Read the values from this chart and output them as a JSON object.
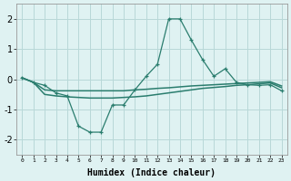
{
  "xlabel": "Humidex (Indice chaleur)",
  "x": [
    0,
    1,
    2,
    3,
    4,
    5,
    6,
    7,
    8,
    9,
    10,
    11,
    12,
    13,
    14,
    15,
    16,
    17,
    18,
    19,
    20,
    21,
    22,
    23
  ],
  "line1": [
    0.05,
    -0.1,
    -0.2,
    -0.45,
    -0.55,
    -1.55,
    -1.75,
    -1.75,
    -0.85,
    -0.85,
    -0.35,
    0.1,
    0.5,
    2.0,
    2.0,
    1.3,
    0.65,
    0.1,
    0.35,
    -0.1,
    -0.18,
    -0.2,
    -0.18,
    -0.38
  ],
  "line2": [
    0.05,
    -0.1,
    -0.35,
    -0.38,
    -0.38,
    -0.38,
    -0.38,
    -0.38,
    -0.38,
    -0.38,
    -0.35,
    -0.33,
    -0.3,
    -0.28,
    -0.25,
    -0.22,
    -0.2,
    -0.18,
    -0.16,
    -0.14,
    -0.12,
    -0.1,
    -0.08,
    -0.22
  ],
  "line3": [
    0.05,
    -0.1,
    -0.5,
    -0.55,
    -0.58,
    -0.6,
    -0.62,
    -0.62,
    -0.62,
    -0.6,
    -0.58,
    -0.55,
    -0.5,
    -0.45,
    -0.4,
    -0.35,
    -0.3,
    -0.27,
    -0.24,
    -0.2,
    -0.18,
    -0.15,
    -0.12,
    -0.28
  ],
  "line_color": "#2a7d6e",
  "bg_color": "#dff2f2",
  "grid_color": "#b8d8d8",
  "ylim": [
    -2.5,
    2.5
  ],
  "yticks": [
    -2,
    -1,
    0,
    1,
    2
  ]
}
